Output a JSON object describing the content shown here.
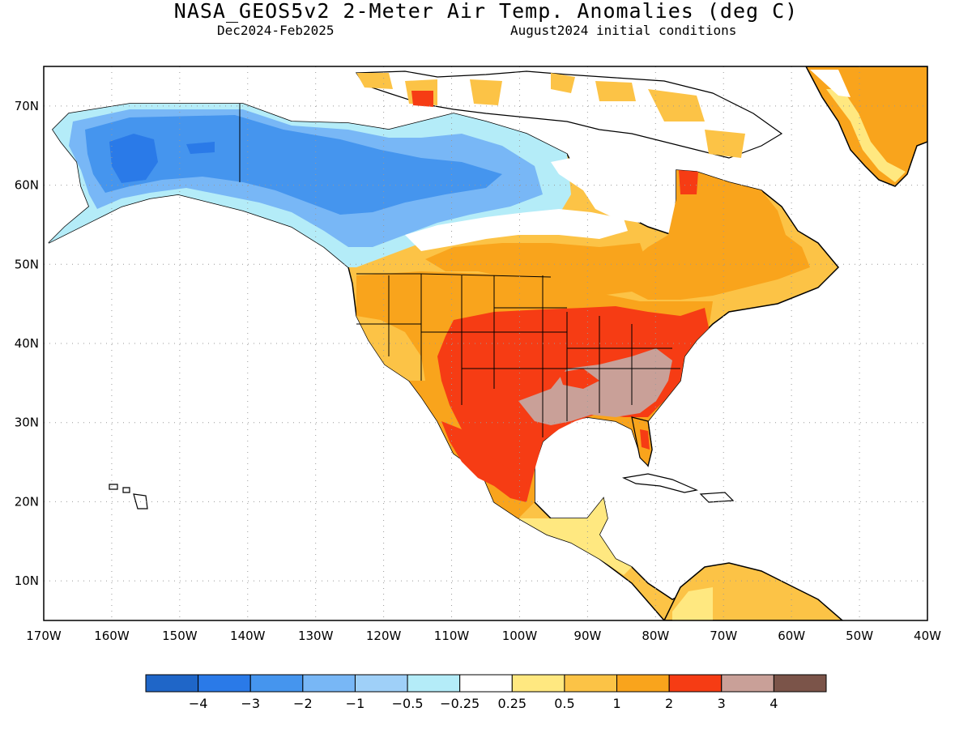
{
  "title": "NASA_GEOS5v2 2-Meter Air Temp. Anomalies (deg C)",
  "subtitle_left": "Dec2024-Feb2025",
  "subtitle_right": "August2024 initial conditions",
  "map": {
    "lon_range": [
      -170,
      -40
    ],
    "lat_range": [
      5,
      75
    ],
    "lon_ticks": [
      "170W",
      "160W",
      "150W",
      "140W",
      "130W",
      "120W",
      "110W",
      "100W",
      "90W",
      "80W",
      "70W",
      "60W",
      "50W",
      "40W"
    ],
    "lat_ticks": [
      "10N",
      "20N",
      "30N",
      "40N",
      "50N",
      "60N",
      "70N"
    ],
    "gridlines": true
  },
  "colorbar": {
    "colors": [
      "#1f66c8",
      "#2a7ae8",
      "#4595ee",
      "#78b7f6",
      "#9fd0f8",
      "#b4ecf8",
      "#ffffff",
      "#ffe880",
      "#fcc346",
      "#f9a41c",
      "#f63c14",
      "#c9a098",
      "#7b5449"
    ],
    "labels": [
      "−4",
      "−3",
      "−2",
      "−1",
      "−0.5",
      "−0.25",
      "0.25",
      "0.5",
      "1",
      "2",
      "3",
      "4"
    ]
  },
  "palette": {
    "deep_blue": "#2a7ae8",
    "blue": "#4595ee",
    "light_blue": "#78b7f6",
    "pale_blue": "#b4ecf8",
    "yellow": "#ffe880",
    "light_orange": "#fcc346",
    "orange": "#f9a41c",
    "red": "#f63c14",
    "brown": "#c9a098"
  }
}
